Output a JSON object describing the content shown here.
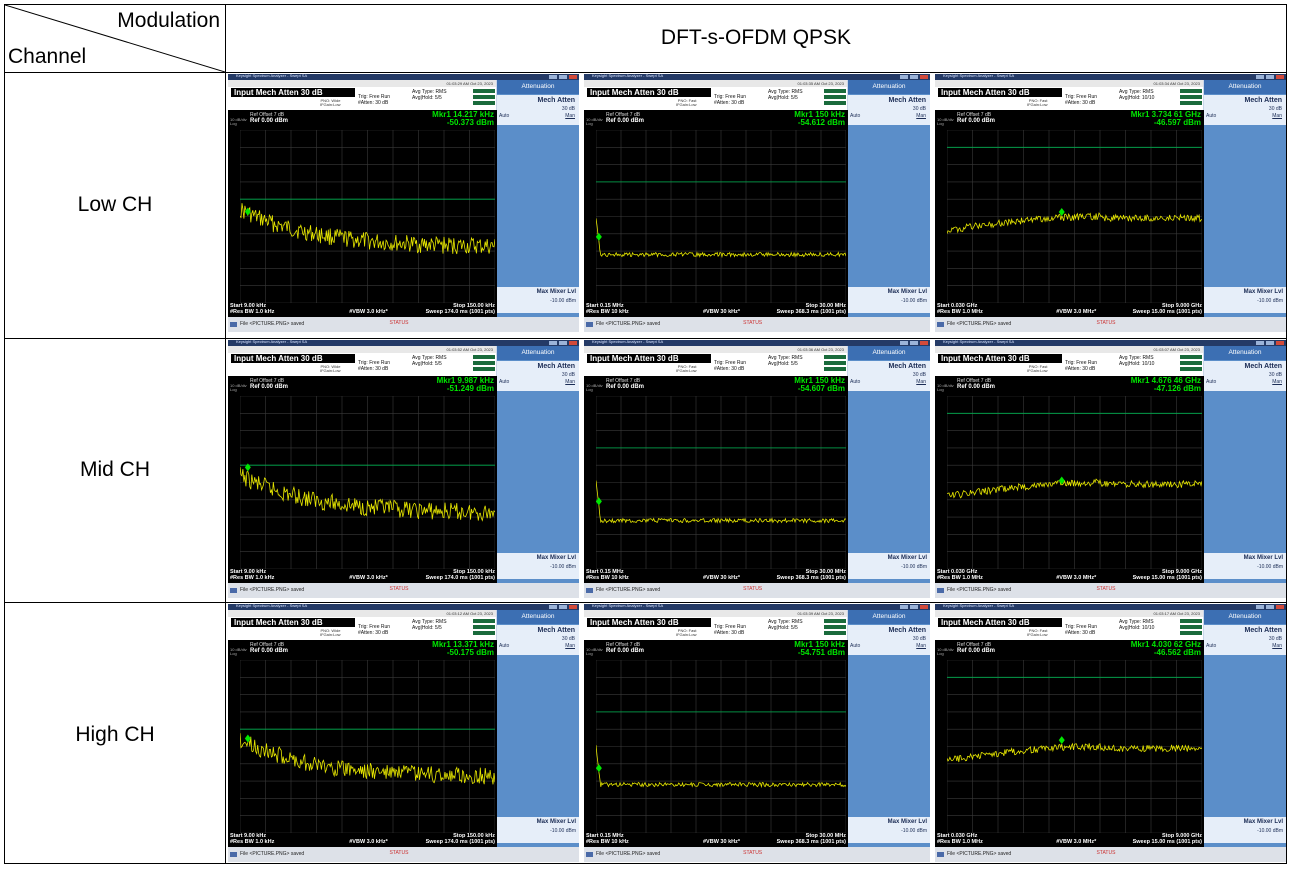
{
  "header": {
    "modulation_label": "Modulation",
    "channel_label": "Channel",
    "mode": "DFT-s-OFDM QPSK"
  },
  "rows": [
    {
      "label": "Low CH"
    },
    {
      "label": "Mid CH"
    },
    {
      "label": "High CH"
    }
  ],
  "analyzer": {
    "window_title": "Keysight Spectrum Analyzer - Swept SA",
    "input_label": "Input Mech Atten 30 dB",
    "ref_offset": "Ref Offset 7 dB",
    "ref_level": "Ref 0.00 dBm",
    "scale": "10 dB/div",
    "scale_type": "Log",
    "trig": "Trig: Free Run",
    "atten": "#Atten: 30 dB",
    "avg_type": "Avg Type: RMS",
    "attenuation_softkey": "Attenuation",
    "mech_atten_softkey": "Mech Atten",
    "mech_atten_value": "30 dB",
    "auto": "Auto",
    "man": "Man",
    "max_mixer": "Max Mixer Lvl",
    "max_mixer_value": "-10.00 dBm",
    "status_msg": "File <PICTURE.PNG> saved",
    "status_keys": "STATUS"
  },
  "columns": [
    {
      "start": "Start 9.00 kHz",
      "res_bw": "#Res BW 1.0 kHz",
      "vbw": "#VBW 3.0 kHz*",
      "stop": "Stop 150.00 kHz",
      "sweep": "Sweep  174.0 ms (1001 pts)",
      "pno": "PNO: Wide",
      "ifgain": "IFGain:Low",
      "avg_hold": "Avg|Hold: 5/5",
      "trace_shape": "decay"
    },
    {
      "start": "Start 0.15 MHz",
      "res_bw": "#Res BW 10 kHz",
      "vbw": "#VBW 30 kHz*",
      "stop": "Stop 30.00 MHz",
      "sweep": "Sweep  368.3 ms (1001 pts)",
      "pno": "PNO: Fast",
      "ifgain": "IFGain:Low",
      "avg_hold": "Avg|Hold: 5/5",
      "trace_shape": "flat"
    },
    {
      "start": "Start 0.030 GHz",
      "res_bw": "#Res BW 1.0 MHz",
      "vbw": "#VBW 3.0 MHz*",
      "stop": "Stop 9.000 GHz",
      "sweep": "Sweep  15.00 ms (1001 pts)",
      "pno": "PNO: Fast",
      "ifgain": "IFGain:Low",
      "avg_hold": "Avg|Hold: 10/10",
      "trace_shape": "rise"
    }
  ],
  "markers": [
    [
      {
        "freq": "Mkr1 14.217 kHz",
        "level": "-50.373 dBm"
      },
      {
        "freq": "Mkr1 150 kHz",
        "level": "-54.612 dBm"
      },
      {
        "freq": "Mkr1 3.734 61 GHz",
        "level": "-46.597 dBm"
      }
    ],
    [
      {
        "freq": "Mkr1 9.987 kHz",
        "level": "-51.249 dBm"
      },
      {
        "freq": "Mkr1 150 kHz",
        "level": "-54.607 dBm"
      },
      {
        "freq": "Mkr1 4.676 46 GHz",
        "level": "-47.126 dBm"
      }
    ],
    [
      {
        "freq": "Mkr1 13.371 kHz",
        "level": "-50.175 dBm"
      },
      {
        "freq": "Mkr1 150 kHz",
        "level": "-54.751 dBm"
      },
      {
        "freq": "Mkr1 4.030 62 GHz",
        "level": "-46.562 dBm"
      }
    ]
  ],
  "timestamps": [
    [
      "01:03:29 AM Oct 23, 2023",
      "01:03:35 AM Oct 23, 2023",
      "01:03:34 AM Oct 23, 2023"
    ],
    [
      "01:03:52 AM Oct 23, 2023",
      "01:03:36 AM Oct 23, 2023",
      "01:03:07 AM Oct 23, 2023"
    ],
    [
      "01:03:12 AM Oct 23, 2023",
      "01:03:39 AM Oct 23, 2023",
      "01:03:17 AM Oct 23, 2023"
    ]
  ],
  "colors": {
    "trace": "#e6e600",
    "limit": "#00b050",
    "marker": "#00e600",
    "screen": "#000000",
    "softkey": "#5b8ec9"
  }
}
